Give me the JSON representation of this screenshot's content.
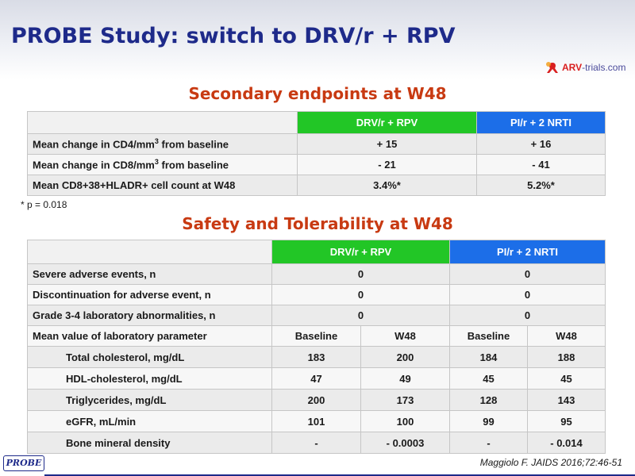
{
  "title": "PROBE Study: switch to DRV/r + RPV",
  "logo": {
    "brand": "ARV",
    "rest": "-trials.com"
  },
  "secondary": {
    "heading": "Secondary endpoints at W48",
    "col_a": "DRV/r + RPV",
    "col_b": "PI/r + 2 NRTI",
    "rows": [
      {
        "label_pre": "Mean change in CD4/mm",
        "sup": "3",
        "label_post": " from baseline",
        "a": "+ 15",
        "b": "+ 16"
      },
      {
        "label_pre": "Mean change in CD8/mm",
        "sup": "3",
        "label_post": " from baseline",
        "a": "- 21",
        "b": "- 41"
      },
      {
        "label_pre": "Mean CD8+38+HLADR+ cell count at W48",
        "sup": "",
        "label_post": "",
        "a": "3.4%*",
        "b": "5.2%*"
      }
    ],
    "footnote": "* p = 0.018"
  },
  "safety": {
    "heading": "Safety and Tolerability at W48",
    "col_a": "DRV/r + RPV",
    "col_b": "PI/r + 2 NRTI",
    "simple_rows": [
      {
        "label": "Severe adverse events, n",
        "a": "0",
        "b": "0"
      },
      {
        "label": "Discontinuation for adverse event, n",
        "a": "0",
        "b": "0"
      },
      {
        "label": "Grade 3-4 laboratory abnormalities, n",
        "a": "0",
        "b": "0"
      }
    ],
    "lab_header": {
      "label": "Mean value of laboratory parameter",
      "a1": "Baseline",
      "a2": "W48",
      "b1": "Baseline",
      "b2": "W48"
    },
    "lab_rows": [
      {
        "label": "Total cholesterol, mg/dL",
        "a1": "183",
        "a2": "200",
        "b1": "184",
        "b2": "188"
      },
      {
        "label": "HDL-cholesterol, mg/dL",
        "a1": "47",
        "a2": "49",
        "b1": "45",
        "b2": "45"
      },
      {
        "label": "Triglycerides, mg/dL",
        "a1": "200",
        "a2": "173",
        "b1": "128",
        "b2": "143"
      },
      {
        "label": "eGFR, mL/min",
        "a1": "101",
        "a2": "100",
        "b1": "99",
        "b2": "95"
      },
      {
        "label": "Bone mineral density",
        "a1": "-",
        "a2": "- 0.0003",
        "b1": "-",
        "b2": "- 0.014"
      }
    ]
  },
  "citation": "Maggiolo F. JAIDS 2016;72:46-51",
  "badge": "PROBE"
}
